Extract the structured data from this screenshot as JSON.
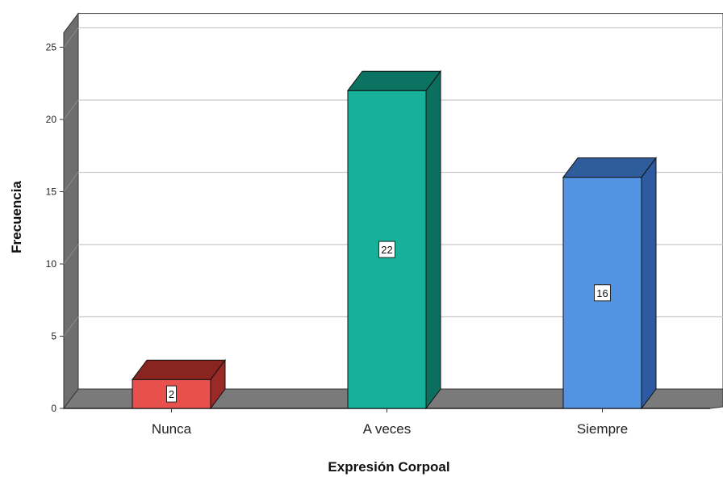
{
  "chart_data": {
    "type": "bar",
    "style": "3d",
    "categories": [
      "Nunca",
      "A veces",
      "Siempre"
    ],
    "values": [
      2,
      22,
      16
    ],
    "data_labels": [
      "2",
      "22",
      "16"
    ],
    "xlabel": "Expresión Corpoal",
    "ylabel": "Frecuencia",
    "ylim": [
      0,
      26
    ],
    "yticks": [
      0,
      5,
      10,
      15,
      20,
      25
    ],
    "grid": true,
    "colors": {
      "bars": [
        "#e8504d",
        "#17b09b",
        "#5294e2"
      ],
      "bars_side": [
        "#9a2a26",
        "#0b6e5e",
        "#2d5aa0"
      ],
      "bars_top": [
        "#8a2420",
        "#0b7361",
        "#2f5c9a"
      ],
      "floor": "#7a7a7a",
      "wall_side": "#6e6e6e",
      "grid": "#c8c8c8"
    }
  }
}
